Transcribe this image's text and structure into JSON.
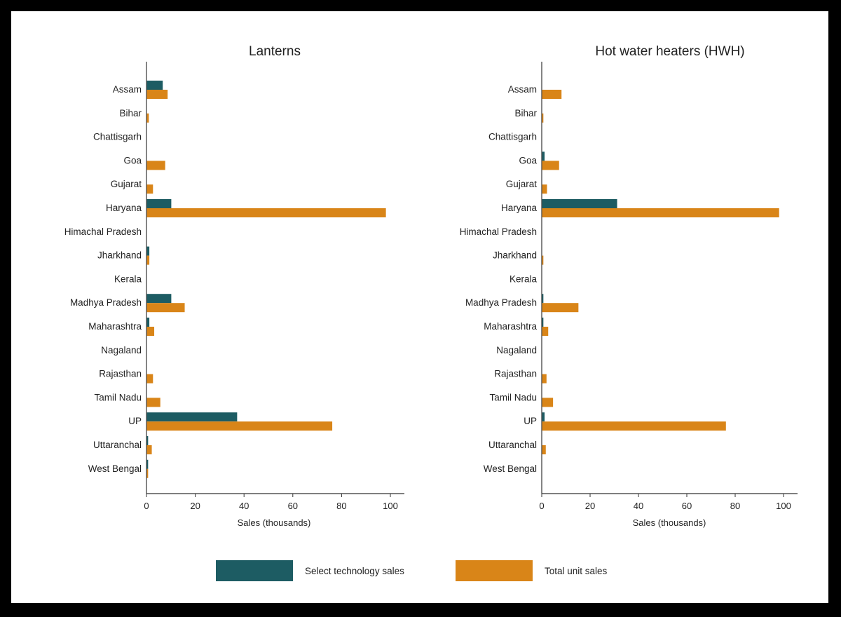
{
  "chart_data": [
    {
      "type": "bar",
      "orientation": "horizontal",
      "title": "Lanterns",
      "xlabel": "Sales (thousands)",
      "xlim": [
        0,
        100
      ],
      "xticks": [
        "0",
        "20",
        "40",
        "60",
        "80",
        "100"
      ],
      "categories": [
        "Assam",
        "Bihar",
        "Chattisgarh",
        "Goa",
        "Gujarat",
        "Haryana",
        "Himachal Pradesh",
        "Jharkhand",
        "Kerala",
        "Madhya Pradesh",
        "Maharashtra",
        "Nagaland",
        "Rajasthan",
        "Tamil Nadu",
        "UP",
        "Uttaranchal",
        "West Bengal"
      ],
      "series": [
        {
          "name": "Select technology sales",
          "color": "#1d5c63",
          "values": [
            6.5,
            0,
            0,
            0,
            0,
            10,
            0,
            1,
            0,
            10,
            1,
            0,
            0,
            0,
            37,
            0.5,
            0.5
          ]
        },
        {
          "name": "Total unit sales",
          "color": "#d98518",
          "values": [
            8.5,
            0.8,
            0,
            7.5,
            2.5,
            98,
            0,
            1,
            0,
            15.5,
            3,
            0,
            2.5,
            5.5,
            76,
            2,
            0.5
          ]
        }
      ]
    },
    {
      "type": "bar",
      "orientation": "horizontal",
      "title": "Hot water heaters (HWH)",
      "xlabel": "Sales (thousands)",
      "xlim": [
        0,
        100
      ],
      "xticks": [
        "0",
        "20",
        "40",
        "60",
        "80",
        "100"
      ],
      "categories": [
        "Assam",
        "Bihar",
        "Chattisgarh",
        "Goa",
        "Gujarat",
        "Haryana",
        "Himachal Pradesh",
        "Jharkhand",
        "Kerala",
        "Madhya Pradesh",
        "Maharashtra",
        "Nagaland",
        "Rajasthan",
        "Tamil Nadu",
        "UP",
        "Uttaranchal",
        "West Bengal"
      ],
      "series": [
        {
          "name": "Select technology sales",
          "color": "#1d5c63",
          "values": [
            0,
            0,
            0,
            1,
            0,
            31,
            0,
            0,
            0,
            0.5,
            0.5,
            0,
            0,
            0,
            1,
            0,
            0
          ]
        },
        {
          "name": "Total unit sales",
          "color": "#d98518",
          "values": [
            8,
            0.5,
            0,
            7,
            2,
            98,
            0,
            0.5,
            0,
            15,
            2.5,
            0,
            1.8,
            4.5,
            76,
            1.5,
            0
          ]
        }
      ]
    }
  ],
  "legend": [
    {
      "label": "Select technology sales",
      "color": "#1d5c63"
    },
    {
      "label": "Total unit sales",
      "color": "#d98518"
    }
  ]
}
